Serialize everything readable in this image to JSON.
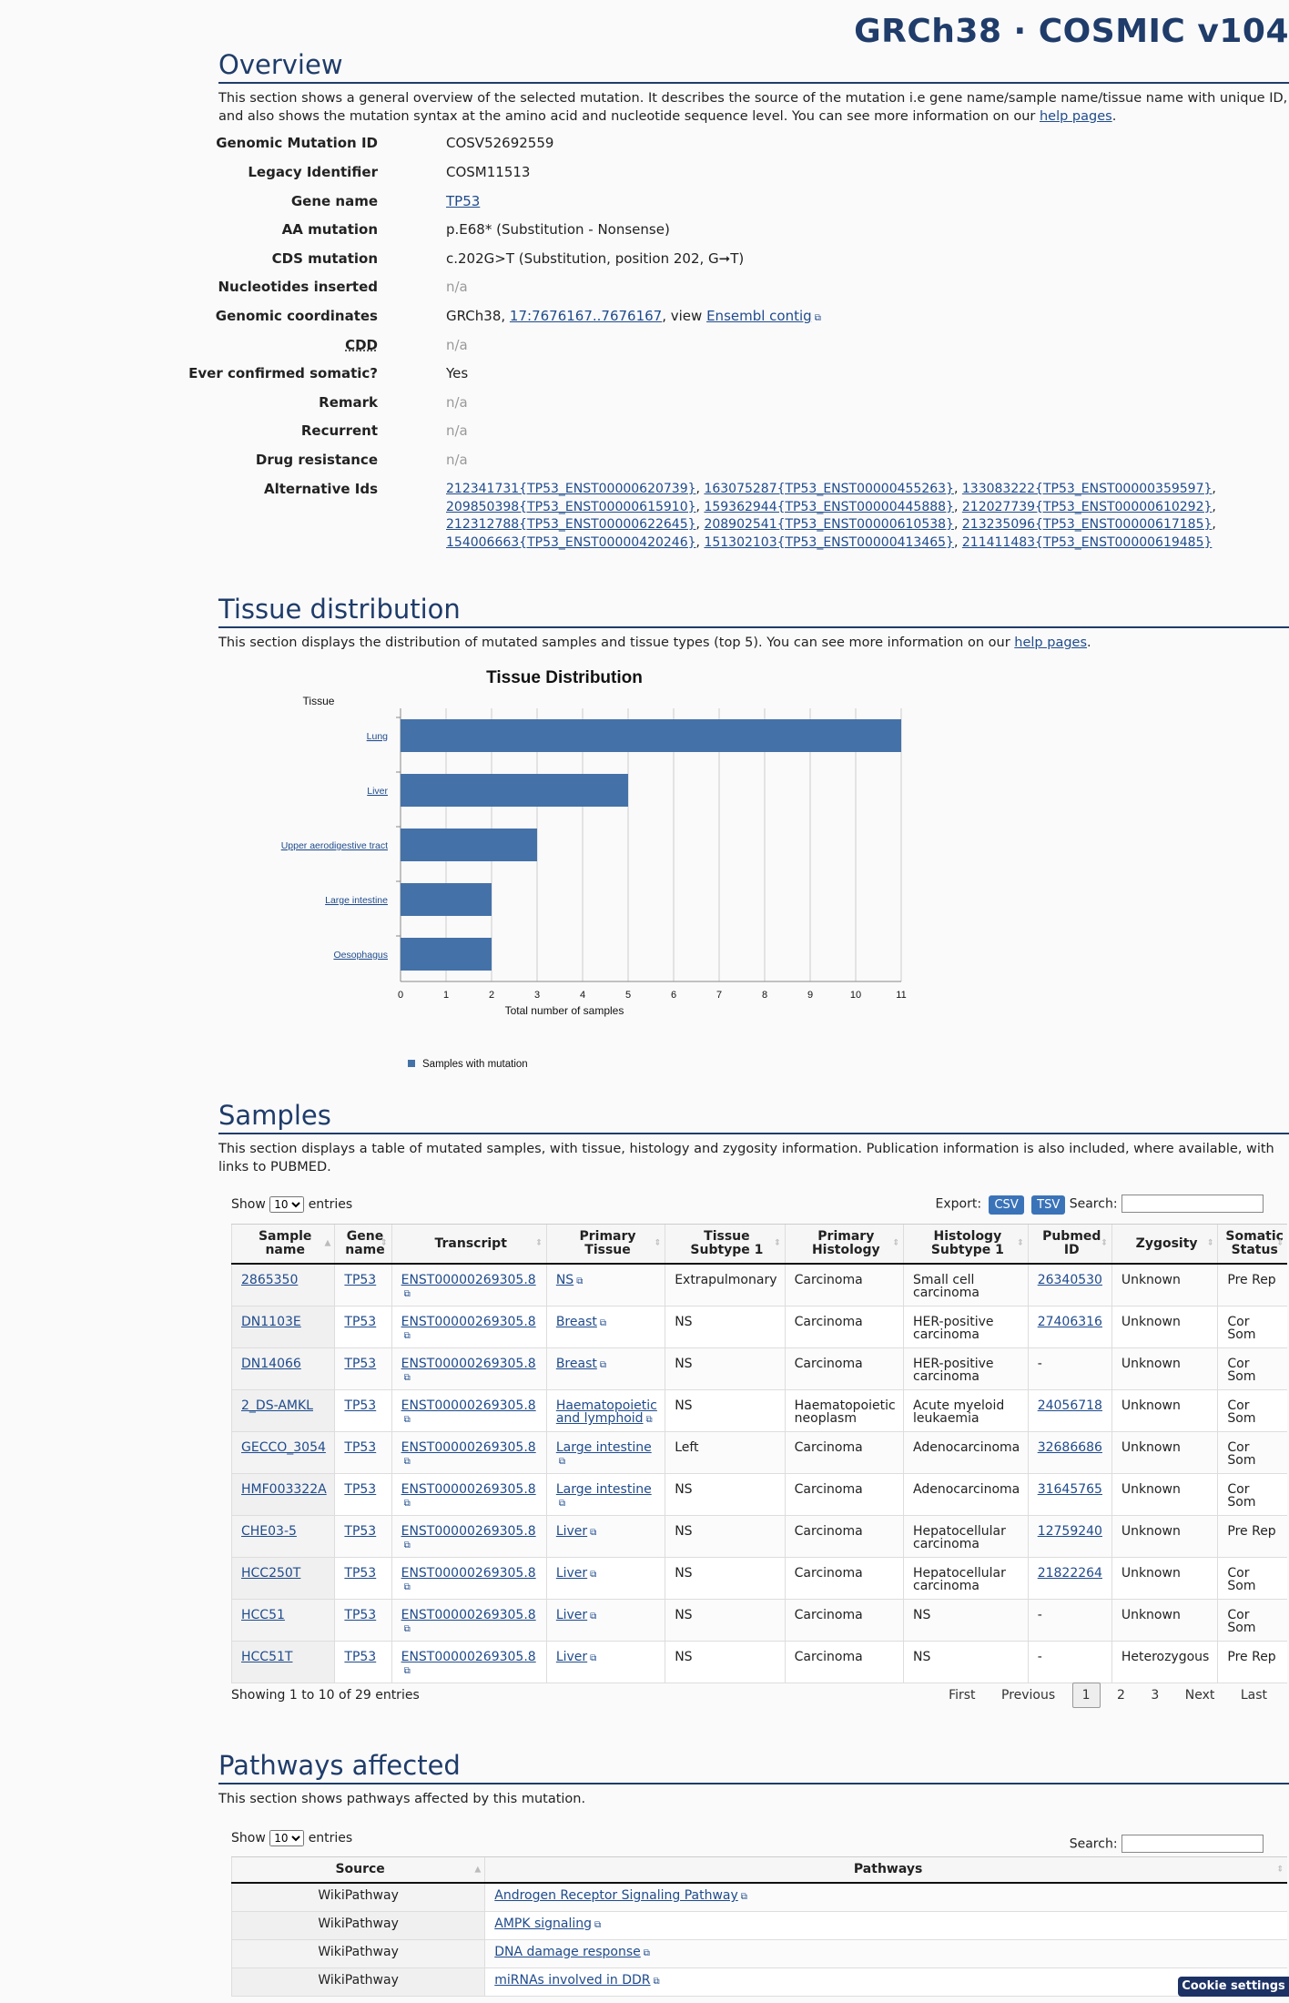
{
  "header": {
    "title": "GRCh38 · COSMIC v104"
  },
  "overview": {
    "heading": "Overview",
    "intro": "This section shows a general overview of the selected mutation. It describes the source of the mutation i.e gene name/sample name/tissue name with unique ID, and also shows the mutation syntax at the amino acid and nucleotide sequence level. You can see more information on our",
    "intro_link": "help pages",
    "intro_end": ".",
    "fields": {
      "genomic_mutation_id": {
        "label": "Genomic Mutation ID",
        "value": "COSV52692559"
      },
      "legacy_identifier": {
        "label": "Legacy Identifier",
        "value": "COSM11513"
      },
      "gene_name": {
        "label": "Gene name",
        "value": "TP53"
      },
      "aa_mutation": {
        "label": "AA mutation",
        "value": "p.E68* (Substitution - Nonsense)"
      },
      "cds_mutation": {
        "label": "CDS mutation",
        "value": "c.202G>T (Substitution, position 202, G➞T)"
      },
      "nucleotides_inserted": {
        "label": "Nucleotides inserted",
        "value": "n/a"
      },
      "genomic_coordinates": {
        "label": "Genomic coordinates",
        "prefix": "GRCh38,",
        "link": "17:7676167..7676167",
        "mid": ", view",
        "link2": "Ensembl contig"
      },
      "cdd": {
        "label": "CDD",
        "value": "n/a"
      },
      "ever_confirmed_somatic": {
        "label": "Ever confirmed somatic?",
        "value": "Yes"
      },
      "remark": {
        "label": "Remark",
        "value": "n/a"
      },
      "recurrent": {
        "label": "Recurrent",
        "value": "n/a"
      },
      "drug_resistance": {
        "label": "Drug resistance",
        "value": "n/a"
      },
      "alternative_ids": {
        "label": "Alternative Ids",
        "ids": [
          "212341731{TP53_ENST00000620739}",
          "163075287{TP53_ENST00000455263}",
          "133083222{TP53_ENST00000359597}",
          "209850398{TP53_ENST00000615910}",
          "159362944{TP53_ENST00000445888}",
          "212027739{TP53_ENST00000610292}",
          "212312788{TP53_ENST00000622645}",
          "208902541{TP53_ENST00000610538}",
          "213235096{TP53_ENST00000617185}",
          "154006663{TP53_ENST00000420246}",
          "151302103{TP53_ENST00000413465}",
          "211411483{TP53_ENST00000619485}"
        ]
      }
    }
  },
  "tissue": {
    "heading": "Tissue distribution",
    "intro": "This section displays the distribution of mutated samples and tissue types (top 5). You can see more information on our",
    "intro_link": "help pages",
    "intro_end": "."
  },
  "chart_data": {
    "type": "bar",
    "orientation": "horizontal",
    "title": "Tissue Distribution",
    "ylabel": "Tissue",
    "xlabel": "Total number of samples",
    "categories": [
      "Lung",
      "Liver",
      "Upper aerodigestive tract",
      "Large intestine",
      "Oesophagus"
    ],
    "series": [
      {
        "name": "Samples with mutation",
        "values": [
          11,
          5,
          3,
          2,
          2
        ]
      }
    ],
    "xlim": [
      0,
      11
    ],
    "ticks": [
      0,
      1,
      2,
      3,
      4,
      5,
      6,
      7,
      8,
      9,
      10,
      11
    ],
    "grid": true,
    "legend": "bottom-left",
    "bar_color": "#4472a8"
  },
  "samples": {
    "heading": "Samples",
    "intro": "This section displays a table of mutated samples, with tissue, histology and zygosity information. Publication information is also included, where available, with links to PUBMED.",
    "show_label": "Show",
    "entries_label": "entries",
    "page_size": "10",
    "export_label": "Export:",
    "csv": "CSV",
    "tsv": "TSV",
    "search_label": "Search:",
    "columns": [
      "Sample name",
      "Gene name",
      "Transcript",
      "Primary Tissue",
      "Tissue Subtype 1",
      "Primary Histology",
      "Histology Subtype 1",
      "Pubmed ID",
      "Zygosity",
      "Somatic Status"
    ],
    "rows": [
      [
        "2865350",
        "TP53",
        "ENST00000269305.8",
        "NS",
        "Extrapulmonary",
        "Carcinoma",
        "Small cell carcinoma",
        "26340530",
        "Unknown",
        "Pre Rep"
      ],
      [
        "DN1103E",
        "TP53",
        "ENST00000269305.8",
        "Breast",
        "NS",
        "Carcinoma",
        "HER-positive carcinoma",
        "27406316",
        "Unknown",
        "Cor Som"
      ],
      [
        "DN14066",
        "TP53",
        "ENST00000269305.8",
        "Breast",
        "NS",
        "Carcinoma",
        "HER-positive carcinoma",
        "-",
        "Unknown",
        "Cor Som"
      ],
      [
        "2_DS-AMKL",
        "TP53",
        "ENST00000269305.8",
        "Haematopoietic and lymphoid",
        "NS",
        "Haematopoietic neoplasm",
        "Acute myeloid leukaemia",
        "24056718",
        "Unknown",
        "Cor Som"
      ],
      [
        "GECCO_3054",
        "TP53",
        "ENST00000269305.8",
        "Large intestine",
        "Left",
        "Carcinoma",
        "Adenocarcinoma",
        "32686686",
        "Unknown",
        "Cor Som"
      ],
      [
        "HMF003322A",
        "TP53",
        "ENST00000269305.8",
        "Large intestine",
        "NS",
        "Carcinoma",
        "Adenocarcinoma",
        "31645765",
        "Unknown",
        "Cor Som"
      ],
      [
        "CHE03-5",
        "TP53",
        "ENST00000269305.8",
        "Liver",
        "NS",
        "Carcinoma",
        "Hepatocellular carcinoma",
        "12759240",
        "Unknown",
        "Pre Rep"
      ],
      [
        "HCC250T",
        "TP53",
        "ENST00000269305.8",
        "Liver",
        "NS",
        "Carcinoma",
        "Hepatocellular carcinoma",
        "21822264",
        "Unknown",
        "Cor Som"
      ],
      [
        "HCC51",
        "TP53",
        "ENST00000269305.8",
        "Liver",
        "NS",
        "Carcinoma",
        "NS",
        "-",
        "Unknown",
        "Cor Som"
      ],
      [
        "HCC51T",
        "TP53",
        "ENST00000269305.8",
        "Liver",
        "NS",
        "Carcinoma",
        "NS",
        "-",
        "Heterozygous",
        "Pre Rep"
      ]
    ],
    "showing": "Showing 1 to 10 of 29 entries",
    "pager": {
      "first": "First",
      "previous": "Previous",
      "pages": [
        "1",
        "2",
        "3"
      ],
      "next": "Next",
      "last": "Last"
    }
  },
  "pathways": {
    "heading": "Pathways affected",
    "intro": "This section shows pathways affected by this mutation.",
    "show_label": "Show",
    "entries_label": "entries",
    "page_size": "10",
    "search_label": "Search:",
    "columns": [
      "Source",
      "Pathways"
    ],
    "rows": [
      [
        "WikiPathway",
        "Androgen Receptor Signaling Pathway"
      ],
      [
        "WikiPathway",
        "AMPK signaling"
      ],
      [
        "WikiPathway",
        "DNA damage response"
      ],
      [
        "WikiPathway",
        "miRNAs involved in DDR"
      ]
    ]
  },
  "cookie": {
    "label": "Cookie settings"
  }
}
